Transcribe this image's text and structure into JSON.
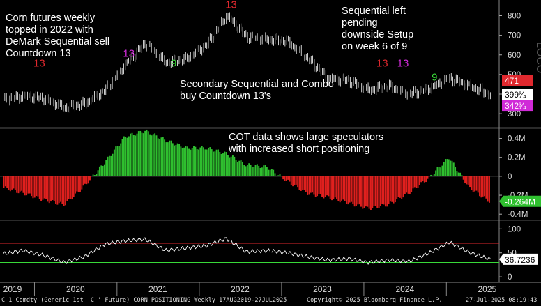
{
  "chart_data": [
    {
      "type": "candlestick",
      "panel": "price",
      "y_ticks": [
        300,
        400,
        500,
        600,
        700,
        800
      ],
      "ylim": [
        240,
        880
      ],
      "price_tags": [
        {
          "label": "471",
          "value": 471,
          "color": "#e0282e"
        },
        {
          "label": "399²⁄₄",
          "value": 399.5,
          "color": "#ffffff"
        },
        {
          "label": "342³⁄₄",
          "value": 342.75,
          "color": "#d02ad8"
        }
      ],
      "x": [
        "2019-08",
        "2019-11",
        "2020-02",
        "2020-05",
        "2020-08",
        "2020-11",
        "2021-02",
        "2021-05",
        "2021-08",
        "2021-11",
        "2022-02",
        "2022-05",
        "2022-08",
        "2022-11",
        "2023-02",
        "2023-05",
        "2023-08",
        "2023-11",
        "2024-02",
        "2024-05",
        "2024-08",
        "2024-11",
        "2025-02",
        "2025-05",
        "2025-07"
      ],
      "close": [
        370,
        390,
        380,
        330,
        350,
        420,
        550,
        660,
        560,
        580,
        650,
        800,
        690,
        680,
        670,
        580,
        480,
        470,
        420,
        440,
        400,
        430,
        480,
        440,
        399.5
      ],
      "annotations": [
        {
          "text": "Corn futures weekly\ntopped in 2022 with\nDeMark Sequential sell\nCountdown 13"
        },
        {
          "text": "Sequential left\npending\ndownside Setup\non week 6 of 9"
        },
        {
          "text": "Secondary Sequential and Combo\nbuy Countdown 13's"
        }
      ],
      "markers": [
        {
          "text": "13",
          "date": "2022-05",
          "color": "#e0282e"
        },
        {
          "text": "13",
          "date": "2020-01",
          "color": "#e0282e"
        },
        {
          "text": "9",
          "date": "2021-09",
          "color": "#38d838"
        },
        {
          "text": "9",
          "date": "2024-11",
          "color": "#38d838"
        },
        {
          "text": "13",
          "date": "2024-03",
          "color": "#e0282e"
        },
        {
          "text": "13",
          "date": "2024-06",
          "color": "#d02ad8"
        },
        {
          "text": "13",
          "date": "2021-02",
          "color": "#d02ad8"
        }
      ]
    },
    {
      "type": "bar",
      "panel": "cot",
      "title": "COT data shows large speculators\nwith increased short positioning",
      "y_ticks": [
        "0.4M",
        "0.2M",
        "0",
        "-0.2M",
        "-0.4M"
      ],
      "y_tick_values": [
        0.4,
        0.2,
        0,
        -0.2,
        -0.4
      ],
      "ylim": [
        -0.45,
        0.5
      ],
      "last_value_label": "-0.264M",
      "last_value": -0.264,
      "x": [
        "2019-08",
        "2019-11",
        "2020-02",
        "2020-05",
        "2020-08",
        "2020-11",
        "2021-02",
        "2021-05",
        "2021-08",
        "2021-11",
        "2022-02",
        "2022-05",
        "2022-08",
        "2022-11",
        "2023-02",
        "2023-05",
        "2023-08",
        "2023-11",
        "2024-02",
        "2024-05",
        "2024-08",
        "2024-11",
        "2025-02",
        "2025-05",
        "2025-07"
      ],
      "values": [
        -0.12,
        -0.18,
        -0.25,
        -0.3,
        -0.1,
        0.15,
        0.42,
        0.48,
        0.38,
        0.3,
        0.3,
        0.24,
        0.12,
        0.1,
        -0.05,
        -0.18,
        -0.22,
        -0.28,
        -0.34,
        -0.3,
        -0.18,
        -0.02,
        0.2,
        -0.12,
        -0.264
      ]
    },
    {
      "type": "line",
      "panel": "rsi",
      "y_ticks": [
        0,
        50,
        100
      ],
      "ylim": [
        -10,
        115
      ],
      "upper_line": 70,
      "lower_line": 30,
      "last_value_label": "36.7236",
      "last_value": 36.7236,
      "x": [
        "2019-08",
        "2019-11",
        "2020-02",
        "2020-05",
        "2020-08",
        "2020-11",
        "2021-02",
        "2021-05",
        "2021-08",
        "2021-11",
        "2022-02",
        "2022-05",
        "2022-08",
        "2022-11",
        "2023-02",
        "2023-05",
        "2023-08",
        "2023-11",
        "2024-02",
        "2024-05",
        "2024-08",
        "2024-11",
        "2025-02",
        "2025-05",
        "2025-07"
      ],
      "values": [
        48,
        55,
        45,
        30,
        42,
        68,
        75,
        78,
        55,
        60,
        65,
        80,
        52,
        55,
        50,
        42,
        35,
        38,
        30,
        35,
        32,
        50,
        72,
        50,
        36.7236
      ]
    }
  ],
  "x_axis_labels": [
    "2019",
    "2020",
    "2021",
    "2022",
    "2023",
    "2024",
    "2025"
  ],
  "watermark": "LOCO",
  "footer": {
    "left": "C 1 Comdty (Generic 1st 'C ' Future) CORN POSITIONING  Weekly 17AUG2019-27JUL2025",
    "center": "Copyright© 2025 Bloomberg Finance L.P.",
    "right": "27-Jul-2025 08:19:43"
  }
}
